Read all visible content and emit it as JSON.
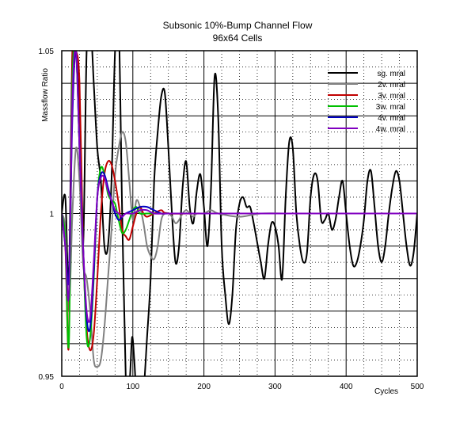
{
  "chart_data": {
    "type": "line",
    "title": "Subsonic 10%-Bump Channel Flow",
    "subtitle": "96x64 Cells",
    "xlabel": "Cycles",
    "ylabel": "Massflow Ratio",
    "xlim": [
      0,
      500
    ],
    "ylim": [
      0.95,
      1.05
    ],
    "x_ticks": [
      "0",
      "100",
      "200",
      "300",
      "400",
      "500"
    ],
    "y_ticks": [
      "0.95",
      "1",
      "1.05"
    ],
    "grid": "dotted minor, solid major",
    "legend_position": "top-right",
    "series": [
      {
        "name": "sg. mral",
        "color": "#000000",
        "points": [
          [
            0,
            1.0
          ],
          [
            5,
            1.005
          ],
          [
            10,
            0.98
          ],
          [
            15,
            1.05
          ],
          [
            20,
            1.05
          ],
          [
            25,
            1.03
          ],
          [
            30,
            0.99
          ],
          [
            35,
            1.05
          ],
          [
            40,
            1.06
          ],
          [
            45,
            1.04
          ],
          [
            50,
            1.02
          ],
          [
            55,
            1.01
          ],
          [
            60,
            0.99
          ],
          [
            65,
            0.99
          ],
          [
            70,
            1.01
          ],
          [
            75,
            1.05
          ],
          [
            80,
            1.06
          ],
          [
            85,
            1.0
          ],
          [
            90,
            0.95
          ],
          [
            93,
            0.945
          ],
          [
            96,
            0.95
          ],
          [
            99,
            0.962
          ],
          [
            102,
            0.955
          ],
          [
            105,
            0.945
          ],
          [
            110,
            0.94
          ],
          [
            115,
            0.945
          ],
          [
            120,
            0.962
          ],
          [
            125,
            0.98
          ],
          [
            130,
            1.01
          ],
          [
            135,
            1.025
          ],
          [
            140,
            1.036
          ],
          [
            145,
            1.037
          ],
          [
            150,
            1.02
          ],
          [
            155,
            1.0
          ],
          [
            160,
            0.985
          ],
          [
            165,
            0.99
          ],
          [
            170,
            1.008
          ],
          [
            175,
            1.016
          ],
          [
            180,
            1.002
          ],
          [
            185,
            0.997
          ],
          [
            190,
            1.007
          ],
          [
            195,
            1.012
          ],
          [
            200,
            1.002
          ],
          [
            205,
            0.99
          ],
          [
            210,
            1.008
          ],
          [
            215,
            1.042
          ],
          [
            220,
            1.03
          ],
          [
            225,
            0.99
          ],
          [
            230,
            0.975
          ],
          [
            235,
            0.966
          ],
          [
            240,
            0.975
          ],
          [
            245,
            0.995
          ],
          [
            250,
            1.003
          ],
          [
            255,
            1.005
          ],
          [
            260,
            1.002
          ],
          [
            265,
            1.002
          ],
          [
            270,
            0.997
          ],
          [
            275,
            0.991
          ],
          [
            280,
            0.985
          ],
          [
            285,
            0.98
          ],
          [
            290,
            0.99
          ],
          [
            295,
            0.997
          ],
          [
            300,
            0.996
          ],
          [
            305,
            0.99
          ],
          [
            310,
            0.98
          ],
          [
            315,
            1.005
          ],
          [
            320,
            1.022
          ],
          [
            325,
            1.02
          ],
          [
            330,
            1.0
          ],
          [
            335,
            0.99
          ],
          [
            340,
            0.985
          ],
          [
            345,
            0.988
          ],
          [
            350,
            1.005
          ],
          [
            355,
            1.012
          ],
          [
            360,
            1.01
          ],
          [
            365,
            0.998
          ],
          [
            370,
            0.998
          ],
          [
            375,
            1.0
          ],
          [
            380,
            0.995
          ],
          [
            385,
            0.998
          ],
          [
            390,
            1.005
          ],
          [
            395,
            1.01
          ],
          [
            400,
            1.0
          ],
          [
            405,
            0.99
          ],
          [
            410,
            0.984
          ],
          [
            415,
            0.985
          ],
          [
            420,
            0.99
          ],
          [
            425,
            0.998
          ],
          [
            430,
            1.01
          ],
          [
            435,
            1.013
          ],
          [
            440,
            1.002
          ],
          [
            445,
            0.99
          ],
          [
            450,
            0.985
          ],
          [
            455,
            0.99
          ],
          [
            460,
            1.0
          ],
          [
            465,
            1.008
          ],
          [
            470,
            1.013
          ],
          [
            475,
            1.01
          ],
          [
            480,
            1.0
          ],
          [
            485,
            0.99
          ],
          [
            490,
            0.984
          ],
          [
            495,
            0.988
          ],
          [
            500,
            1.0
          ]
        ]
      },
      {
        "name": "2v. mral",
        "color": "#808080",
        "points": [
          [
            0,
            1.0
          ],
          [
            5,
            0.995
          ],
          [
            10,
            0.97
          ],
          [
            15,
            1.0
          ],
          [
            20,
            1.02
          ],
          [
            25,
            1.01
          ],
          [
            30,
            0.985
          ],
          [
            35,
            0.98
          ],
          [
            40,
            0.97
          ],
          [
            45,
            0.955
          ],
          [
            50,
            0.953
          ],
          [
            55,
            0.955
          ],
          [
            60,
            0.965
          ],
          [
            65,
            0.98
          ],
          [
            70,
            0.995
          ],
          [
            75,
            1.012
          ],
          [
            80,
            1.02
          ],
          [
            85,
            1.025
          ],
          [
            90,
            1.022
          ],
          [
            95,
            1.01
          ],
          [
            100,
            0.998
          ],
          [
            105,
            1.004
          ],
          [
            110,
            1.002
          ],
          [
            115,
            0.997
          ],
          [
            120,
            0.99
          ],
          [
            125,
            0.987
          ],
          [
            130,
            0.986
          ],
          [
            135,
            0.99
          ],
          [
            140,
            0.998
          ],
          [
            145,
            1.0
          ],
          [
            150,
            1.0
          ],
          [
            155,
            0.999
          ],
          [
            160,
            0.997
          ],
          [
            165,
            0.998
          ],
          [
            170,
            1.0
          ],
          [
            175,
            1.001
          ],
          [
            180,
            1.0
          ],
          [
            185,
            0.999
          ],
          [
            190,
            1.0
          ],
          [
            200,
            1.0
          ],
          [
            210,
            1.001
          ],
          [
            220,
            1.0
          ],
          [
            250,
            0.999
          ],
          [
            280,
            1.0
          ],
          [
            320,
            1.0
          ],
          [
            360,
            1.0
          ],
          [
            400,
            1.0
          ],
          [
            450,
            1.0
          ],
          [
            500,
            1.0
          ]
        ]
      },
      {
        "name": "3v. mral",
        "color": "#c00000",
        "points": [
          [
            0,
            1.0
          ],
          [
            5,
            0.99
          ],
          [
            10,
            0.96
          ],
          [
            15,
            1.05
          ],
          [
            20,
            1.05
          ],
          [
            25,
            1.04
          ],
          [
            30,
            0.99
          ],
          [
            35,
            0.965
          ],
          [
            40,
            0.958
          ],
          [
            45,
            0.963
          ],
          [
            50,
            0.98
          ],
          [
            55,
            1.0
          ],
          [
            60,
            1.012
          ],
          [
            65,
            1.016
          ],
          [
            70,
            1.015
          ],
          [
            75,
            1.01
          ],
          [
            80,
            1.003
          ],
          [
            85,
            0.995
          ],
          [
            90,
            0.993
          ],
          [
            95,
            0.992
          ],
          [
            100,
            0.996
          ],
          [
            105,
            1.0
          ],
          [
            110,
            1.002
          ],
          [
            115,
            1.0
          ],
          [
            120,
            0.999
          ],
          [
            130,
            1.0
          ],
          [
            140,
            1.001
          ],
          [
            150,
            1.0
          ],
          [
            200,
            1.0
          ],
          [
            300,
            1.0
          ],
          [
            400,
            1.0
          ],
          [
            500,
            1.0
          ]
        ]
      },
      {
        "name": "3w. mral",
        "color": "#00c000",
        "points": [
          [
            0,
            1.0
          ],
          [
            5,
            0.992
          ],
          [
            10,
            0.96
          ],
          [
            15,
            1.04
          ],
          [
            20,
            1.05
          ],
          [
            25,
            1.02
          ],
          [
            30,
            0.99
          ],
          [
            35,
            0.962
          ],
          [
            40,
            0.962
          ],
          [
            45,
            0.98
          ],
          [
            50,
            1.005
          ],
          [
            55,
            1.014
          ],
          [
            60,
            1.012
          ],
          [
            65,
            1.006
          ],
          [
            70,
            1.004
          ],
          [
            75,
            1.003
          ],
          [
            80,
            0.998
          ],
          [
            85,
            0.994
          ],
          [
            90,
            0.995
          ],
          [
            95,
            0.998
          ],
          [
            100,
            1.001
          ],
          [
            105,
            1.002
          ],
          [
            110,
            1.0
          ],
          [
            120,
            1.0
          ],
          [
            150,
            1.0
          ],
          [
            200,
            1.0
          ],
          [
            300,
            1.0
          ],
          [
            400,
            1.0
          ],
          [
            500,
            1.0
          ]
        ]
      },
      {
        "name": "4v. mral",
        "color": "#0000c0",
        "points": [
          [
            0,
            1.0
          ],
          [
            5,
            0.99
          ],
          [
            10,
            0.98
          ],
          [
            15,
            1.03
          ],
          [
            20,
            1.05
          ],
          [
            25,
            1.02
          ],
          [
            30,
            0.99
          ],
          [
            35,
            0.968
          ],
          [
            40,
            0.965
          ],
          [
            45,
            0.982
          ],
          [
            50,
            1.005
          ],
          [
            55,
            1.012
          ],
          [
            60,
            1.012
          ],
          [
            65,
            1.008
          ],
          [
            70,
            1.004
          ],
          [
            75,
            1.0
          ],
          [
            80,
            0.998
          ],
          [
            85,
            0.999
          ],
          [
            90,
            1.0
          ],
          [
            100,
            1.001
          ],
          [
            110,
            1.002
          ],
          [
            120,
            1.002
          ],
          [
            130,
            1.001
          ],
          [
            140,
            1.0
          ],
          [
            150,
            1.0
          ],
          [
            200,
            1.0
          ],
          [
            300,
            1.0
          ],
          [
            400,
            1.0
          ],
          [
            500,
            1.0
          ]
        ]
      },
      {
        "name": "4w. mral",
        "color": "#8000c0",
        "points": [
          [
            0,
            1.0
          ],
          [
            5,
            0.99
          ],
          [
            10,
            0.975
          ],
          [
            15,
            1.035
          ],
          [
            20,
            1.05
          ],
          [
            25,
            1.02
          ],
          [
            30,
            0.99
          ],
          [
            35,
            0.97
          ],
          [
            40,
            0.968
          ],
          [
            45,
            0.985
          ],
          [
            50,
            1.005
          ],
          [
            55,
            1.011
          ],
          [
            60,
            1.011
          ],
          [
            65,
            1.007
          ],
          [
            70,
            1.004
          ],
          [
            75,
            1.001
          ],
          [
            80,
            1.0
          ],
          [
            85,
            0.999
          ],
          [
            90,
            1.0
          ],
          [
            100,
            1.0
          ],
          [
            110,
            1.001
          ],
          [
            120,
            1.001
          ],
          [
            130,
            1.0
          ],
          [
            150,
            1.0
          ],
          [
            200,
            1.0
          ],
          [
            300,
            1.0
          ],
          [
            400,
            1.0
          ],
          [
            500,
            1.0
          ]
        ]
      }
    ]
  }
}
